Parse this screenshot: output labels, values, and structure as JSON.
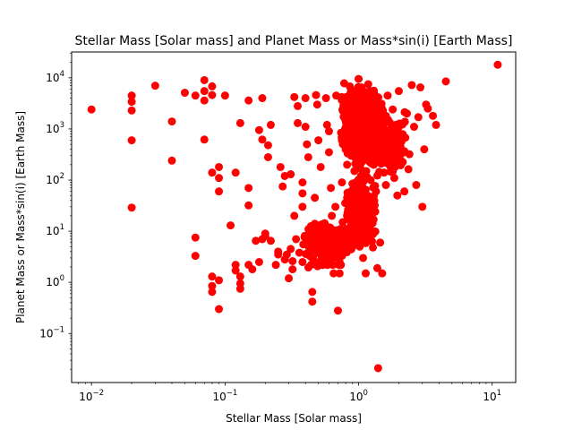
{
  "chart_data": {
    "type": "scatter",
    "title": "Stellar Mass [Solar mass] and Planet Mass or Mass*sin(i) [Earth Mass]",
    "xlabel": "Stellar Mass [Solar mass]",
    "ylabel": "Planet Mass or Mass*sin(i) [Earth Mass]",
    "x_scale": "log",
    "y_scale": "log",
    "xlim": [
      0.0071,
      15
    ],
    "ylim": [
      0.011,
      32000
    ],
    "x_ticks": [
      {
        "value": 0.01,
        "base": "10",
        "exp": "−2"
      },
      {
        "value": 0.1,
        "base": "10",
        "exp": "−1"
      },
      {
        "value": 1,
        "base": "10",
        "exp": "0"
      },
      {
        "value": 10,
        "base": "10",
        "exp": "1"
      }
    ],
    "y_ticks": [
      {
        "value": 0.1,
        "base": "10",
        "exp": "−1"
      },
      {
        "value": 1,
        "base": "10",
        "exp": "0"
      },
      {
        "value": 10,
        "base": "10",
        "exp": "1"
      },
      {
        "value": 100,
        "base": "10",
        "exp": "2"
      },
      {
        "value": 1000,
        "base": "10",
        "exp": "3"
      },
      {
        "value": 10000,
        "base": "10",
        "exp": "4"
      }
    ],
    "grid": false,
    "marker_color": "#ff0000",
    "points": [
      [
        0.01,
        2400
      ],
      [
        0.02,
        4500
      ],
      [
        0.02,
        3400
      ],
      [
        0.02,
        2300
      ],
      [
        0.02,
        600
      ],
      [
        0.02,
        29
      ],
      [
        0.03,
        7000
      ],
      [
        0.04,
        1400
      ],
      [
        0.04,
        240
      ],
      [
        0.05,
        5100
      ],
      [
        0.06,
        4500
      ],
      [
        0.07,
        9000
      ],
      [
        0.07,
        5500
      ],
      [
        0.07,
        3600
      ],
      [
        0.08,
        6800
      ],
      [
        0.08,
        4600
      ],
      [
        0.07,
        620
      ],
      [
        0.08,
        140
      ],
      [
        0.09,
        180
      ],
      [
        0.09,
        110
      ],
      [
        0.09,
        60
      ],
      [
        0.06,
        7.5
      ],
      [
        0.06,
        3.3
      ],
      [
        0.08,
        1.3
      ],
      [
        0.08,
        0.85
      ],
      [
        0.08,
        0.65
      ],
      [
        0.09,
        1.1
      ],
      [
        0.09,
        0.3
      ],
      [
        0.1,
        4500
      ],
      [
        0.11,
        13
      ],
      [
        0.12,
        2.2
      ],
      [
        0.12,
        1.7
      ],
      [
        0.13,
        1.3
      ],
      [
        0.13,
        0.95
      ],
      [
        0.13,
        0.75
      ],
      [
        0.12,
        140
      ],
      [
        0.13,
        1300
      ],
      [
        0.15,
        3600
      ],
      [
        0.15,
        2.2
      ],
      [
        0.15,
        32
      ],
      [
        0.15,
        70
      ],
      [
        0.16,
        1.8
      ],
      [
        0.17,
        6.5
      ],
      [
        0.18,
        2.5
      ],
      [
        0.19,
        4000
      ],
      [
        0.19,
        7
      ],
      [
        0.2,
        8
      ],
      [
        0.18,
        950
      ],
      [
        0.19,
        620
      ],
      [
        0.21,
        480
      ],
      [
        0.22,
        1200
      ],
      [
        0.21,
        280
      ],
      [
        0.2,
        9
      ],
      [
        0.22,
        6.5
      ],
      [
        0.24,
        2.2
      ],
      [
        0.25,
        3.5
      ],
      [
        0.25,
        4
      ],
      [
        0.26,
        180
      ],
      [
        0.27,
        75
      ],
      [
        0.28,
        120
      ],
      [
        0.28,
        2.8
      ],
      [
        0.29,
        3.5
      ],
      [
        0.3,
        1.2
      ],
      [
        0.31,
        4.5
      ],
      [
        0.31,
        130
      ],
      [
        0.32,
        1.8
      ],
      [
        0.32,
        2.6
      ],
      [
        0.33,
        20
      ],
      [
        0.33,
        4200
      ],
      [
        0.35,
        1300
      ],
      [
        0.35,
        2800
      ],
      [
        0.34,
        7
      ],
      [
        0.36,
        3.8
      ],
      [
        0.38,
        2.5
      ],
      [
        0.38,
        90
      ],
      [
        0.38,
        55
      ],
      [
        0.38,
        30
      ],
      [
        0.4,
        1100
      ],
      [
        0.4,
        4000
      ],
      [
        0.41,
        500
      ],
      [
        0.42,
        280
      ],
      [
        0.43,
        3.3
      ],
      [
        0.44,
        2.2
      ],
      [
        0.44,
        8
      ],
      [
        0.45,
        0.65
      ],
      [
        0.45,
        0.42
      ],
      [
        0.46,
        2.8
      ],
      [
        0.47,
        45
      ],
      [
        0.47,
        14
      ],
      [
        0.48,
        4600
      ],
      [
        0.49,
        3000
      ],
      [
        0.5,
        600
      ],
      [
        0.52,
        180
      ],
      [
        0.53,
        4.5
      ],
      [
        0.55,
        2.5
      ],
      [
        0.55,
        12
      ],
      [
        0.57,
        4000
      ],
      [
        0.58,
        1200
      ],
      [
        0.6,
        900
      ],
      [
        0.6,
        350
      ],
      [
        0.62,
        70
      ],
      [
        0.63,
        20
      ],
      [
        0.63,
        6
      ],
      [
        0.64,
        2.2
      ],
      [
        0.65,
        1.5
      ],
      [
        0.67,
        30
      ],
      [
        0.67,
        8
      ],
      [
        0.68,
        4500
      ],
      [
        0.7,
        0.28
      ],
      [
        0.72,
        1.5
      ],
      [
        0.72,
        2.5
      ],
      [
        0.75,
        600
      ],
      [
        0.75,
        90
      ],
      [
        0.76,
        15
      ],
      [
        0.78,
        7800
      ],
      [
        0.8,
        3000
      ],
      [
        0.8,
        1500
      ],
      [
        0.8,
        400
      ],
      [
        0.82,
        200
      ],
      [
        0.82,
        45
      ],
      [
        0.84,
        8
      ],
      [
        0.85,
        1800
      ],
      [
        0.85,
        4.5
      ],
      [
        0.86,
        900
      ],
      [
        0.88,
        300
      ],
      [
        0.88,
        60
      ],
      [
        0.88,
        22
      ],
      [
        0.9,
        2500
      ],
      [
        0.9,
        1200
      ],
      [
        0.9,
        11
      ],
      [
        0.92,
        5000
      ],
      [
        0.92,
        650
      ],
      [
        0.93,
        150
      ],
      [
        0.93,
        35
      ],
      [
        0.94,
        2200
      ],
      [
        0.95,
        400
      ],
      [
        0.95,
        90
      ],
      [
        0.96,
        1000
      ],
      [
        0.96,
        25
      ],
      [
        0.97,
        6
      ],
      [
        0.98,
        3500
      ],
      [
        0.98,
        180
      ],
      [
        0.99,
        600
      ],
      [
        1.0,
        9500
      ],
      [
        1.0,
        1500
      ],
      [
        1.0,
        300
      ],
      [
        1.0,
        40
      ],
      [
        1.0,
        12
      ],
      [
        1.02,
        2800
      ],
      [
        1.02,
        5
      ],
      [
        1.03,
        800
      ],
      [
        1.04,
        120
      ],
      [
        1.05,
        6500
      ],
      [
        1.05,
        1800
      ],
      [
        1.06,
        450
      ],
      [
        1.07,
        70
      ],
      [
        1.08,
        3
      ],
      [
        1.08,
        1100
      ],
      [
        1.09,
        250
      ],
      [
        1.1,
        4200
      ],
      [
        1.1,
        20
      ],
      [
        1.12,
        700
      ],
      [
        1.13,
        1.5
      ],
      [
        1.14,
        150
      ],
      [
        1.15,
        2000
      ],
      [
        1.16,
        50
      ],
      [
        1.17,
        9
      ],
      [
        1.18,
        7500
      ],
      [
        1.2,
        900
      ],
      [
        1.2,
        350
      ],
      [
        1.22,
        3000
      ],
      [
        1.23,
        100
      ],
      [
        1.25,
        1300
      ],
      [
        1.27,
        500
      ],
      [
        1.28,
        4.8
      ],
      [
        1.3,
        5600
      ],
      [
        1.3,
        200
      ],
      [
        1.32,
        2200
      ],
      [
        1.34,
        800
      ],
      [
        1.35,
        60
      ],
      [
        1.37,
        3800
      ],
      [
        1.38,
        1.9
      ],
      [
        1.4,
        0.021
      ],
      [
        1.4,
        1000
      ],
      [
        1.42,
        300
      ],
      [
        1.45,
        6
      ],
      [
        1.47,
        2600
      ],
      [
        1.5,
        1.5
      ],
      [
        1.5,
        600
      ],
      [
        1.55,
        140
      ],
      [
        1.6,
        1800
      ],
      [
        1.6,
        80
      ],
      [
        1.65,
        4500
      ],
      [
        1.7,
        900
      ],
      [
        1.75,
        400
      ],
      [
        1.8,
        2400
      ],
      [
        1.85,
        110
      ],
      [
        1.9,
        1200
      ],
      [
        1.95,
        50
      ],
      [
        2.0,
        5500
      ],
      [
        2.1,
        700
      ],
      [
        2.2,
        60
      ],
      [
        2.3,
        2000
      ],
      [
        2.4,
        320
      ],
      [
        2.5,
        7200
      ],
      [
        2.6,
        1100
      ],
      [
        2.7,
        80
      ],
      [
        2.8,
        1700
      ],
      [
        2.9,
        6500
      ],
      [
        3.0,
        30
      ],
      [
        3.1,
        400
      ],
      [
        3.2,
        3000
      ],
      [
        3.3,
        2500
      ],
      [
        3.6,
        1800
      ],
      [
        3.8,
        1200
      ],
      [
        4.5,
        8500
      ],
      [
        11,
        18000
      ]
    ],
    "dense_clusters": [
      {
        "x_min": 0.7,
        "x_max": 1.6,
        "y_min": 150,
        "y_max": 9000,
        "count": 900
      },
      {
        "x_min": 0.75,
        "x_max": 1.4,
        "y_min": 3,
        "y_max": 150,
        "count": 450
      },
      {
        "x_min": 0.35,
        "x_max": 0.95,
        "y_min": 1.5,
        "y_max": 20,
        "count": 220
      },
      {
        "x_min": 1.1,
        "x_max": 2.6,
        "y_min": 80,
        "y_max": 3000,
        "count": 200
      }
    ]
  }
}
